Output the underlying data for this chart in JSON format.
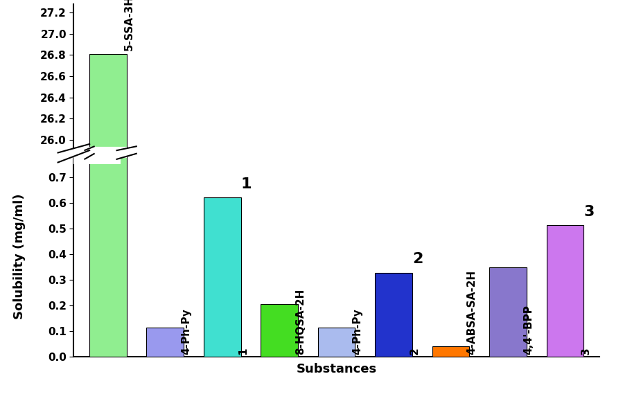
{
  "bars": [
    {
      "label": "5-SSA-3H",
      "value": 26.81,
      "color": "#90EE90"
    },
    {
      "label": "4-Ph-Py",
      "value": 0.115,
      "color": "#9999EE"
    },
    {
      "label": "1",
      "value": 0.62,
      "color": "#40E0D0",
      "num": "1"
    },
    {
      "label": "8-HQSA-2H",
      "value": 0.205,
      "color": "#44DD22"
    },
    {
      "label": "4-Ph-Py",
      "value": 0.115,
      "color": "#AABBEE"
    },
    {
      "label": "2",
      "value": 0.328,
      "color": "#2233CC",
      "num": "2"
    },
    {
      "label": "4-ABSA-SA-2H",
      "value": 0.042,
      "color": "#FF7700"
    },
    {
      "label": "4,4'-BPP",
      "value": 0.348,
      "color": "#8877CC"
    },
    {
      "label": "3",
      "value": 0.512,
      "color": "#CC77EE",
      "num": "3"
    }
  ],
  "xlabel": "Substances",
  "ylabel": "Solubility (mg/ml)",
  "lower_ylim": [
    0.0,
    0.78
  ],
  "upper_ylim": [
    25.92,
    27.28
  ],
  "lower_yticks": [
    0.0,
    0.1,
    0.2,
    0.3,
    0.4,
    0.5,
    0.6,
    0.7
  ],
  "upper_yticks": [
    26.0,
    26.2,
    26.4,
    26.6,
    26.8,
    27.0,
    27.2
  ],
  "background_color": "#FFFFFF",
  "bar_width": 0.65,
  "label_fontsize": 11,
  "num_fontsize": 16,
  "axis_fontsize": 13
}
